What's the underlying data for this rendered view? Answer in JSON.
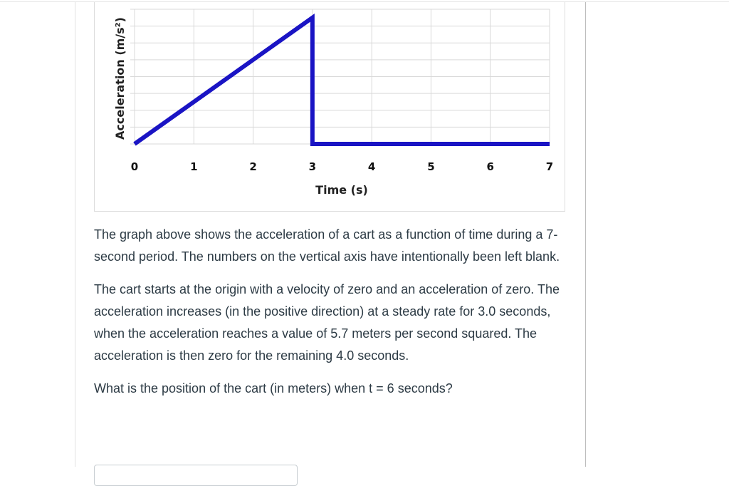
{
  "question": {
    "paragraphs": [
      "The graph above shows the acceleration of a cart as a function of time during a 7-second period.  The numbers on the vertical axis have intentionally been left blank.",
      "The cart starts at the origin with a velocity of zero and an acceleration of zero.  The acceleration increases (in the positive direction) at a steady rate for 3.0 seconds, when the acceleration reaches a value of 5.7 meters per second squared. The acceleration is then zero for the remaining 4.0 seconds.",
      "What is the position of the cart (in meters) when t = 6 seconds?"
    ],
    "answer_value": ""
  },
  "chart_data": {
    "type": "line",
    "title": "",
    "xlabel": "Time (s)",
    "ylabel": "Acceleration (m/s²)",
    "x_ticks": [
      "0",
      "1",
      "2",
      "3",
      "4",
      "5",
      "6",
      "7"
    ],
    "y_ticks": [],
    "xlim": [
      0,
      7
    ],
    "grid": true,
    "legend": null,
    "line_color": "#1a14c4",
    "series": [
      {
        "name": "Acceleration",
        "points": [
          {
            "x": 0,
            "y": 0
          },
          {
            "x": 3,
            "y": 5.7
          },
          {
            "x": 3,
            "y": 0
          },
          {
            "x": 7,
            "y": 0
          }
        ]
      }
    ]
  }
}
